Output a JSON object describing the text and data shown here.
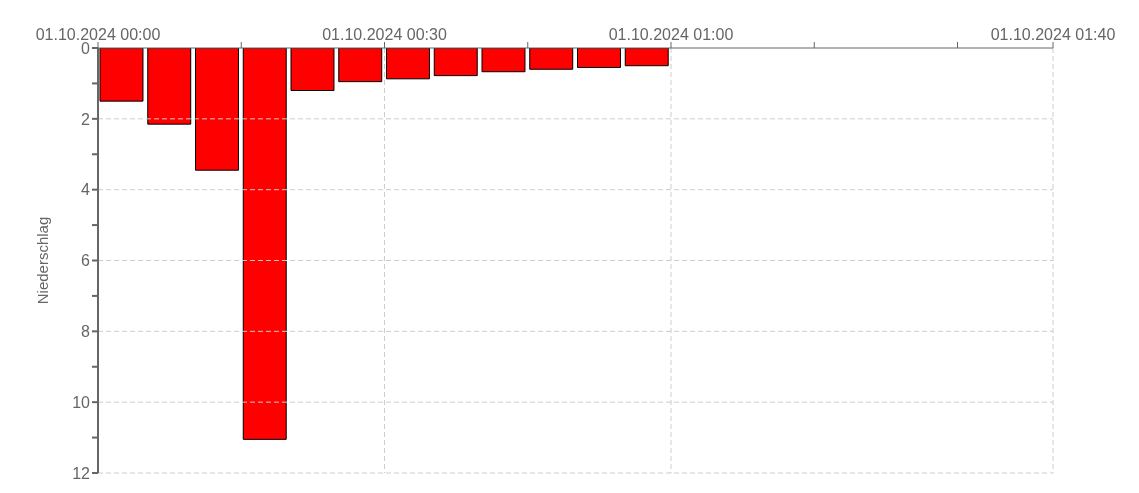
{
  "chart_data": {
    "type": "bar",
    "ylabel": "Niederschlag",
    "x": [
      "2024-10-01T00:02:30",
      "2024-10-01T00:07:30",
      "2024-10-01T00:12:30",
      "2024-10-01T00:17:30",
      "2024-10-01T00:22:30",
      "2024-10-01T00:27:30",
      "2024-10-01T00:32:30",
      "2024-10-01T00:37:30",
      "2024-10-01T00:42:30",
      "2024-10-01T00:47:30",
      "2024-10-01T00:52:30",
      "2024-10-01T00:57:30"
    ],
    "values": [
      1.5,
      2.15,
      3.45,
      11.05,
      1.2,
      0.95,
      0.87,
      0.78,
      0.67,
      0.6,
      0.55,
      0.5
    ],
    "color": "#ff0000",
    "xlim": [
      "2024-10-01T00:00",
      "2024-10-01T01:40"
    ],
    "xticks": [
      {
        "value": "2024-10-01T00:00",
        "label": "01.10.2024 00:00"
      },
      {
        "value": "2024-10-01T00:15",
        "label": null
      },
      {
        "value": "2024-10-01T00:30",
        "label": "01.10.2024 00:30"
      },
      {
        "value": "2024-10-01T00:45",
        "label": null
      },
      {
        "value": "2024-10-01T01:00",
        "label": "01.10.2024 01:00"
      },
      {
        "value": "2024-10-01T01:15",
        "label": null
      },
      {
        "value": "2024-10-01T01:30",
        "label": null
      },
      {
        "value": "2024-10-01T01:40",
        "label": "01.10.2024 01:40"
      }
    ],
    "ylim": [
      12,
      0
    ],
    "yticks": [
      0,
      {
        "value": 1,
        "label": null
      },
      2,
      {
        "value": 3,
        "label": null
      },
      4,
      {
        "value": 5,
        "label": null
      },
      6,
      {
        "value": 7,
        "label": null
      },
      8,
      {
        "value": 9,
        "label": null
      },
      10,
      {
        "value": 11,
        "label": null
      },
      12
    ],
    "grid": true
  }
}
